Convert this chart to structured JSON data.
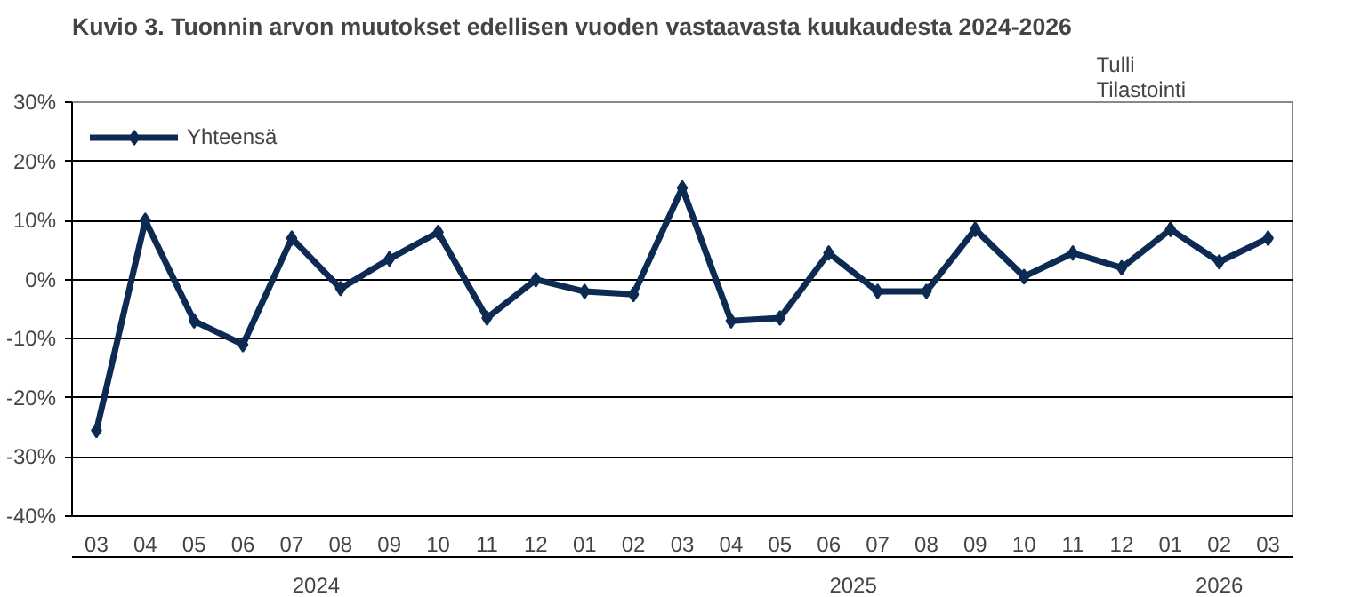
{
  "chart_data": {
    "type": "line",
    "title": "Kuvio 3. Tuonnin arvon muutokset edellisen vuoden vastaavasta kuukaudesta 2024-2026",
    "annotations": [
      "Tulli\nTilastointi",
      "2024",
      "2025",
      "2026"
    ],
    "categories": [
      "03",
      "04",
      "05",
      "06",
      "07",
      "08",
      "09",
      "10",
      "11",
      "12",
      "01",
      "02",
      "03",
      "04",
      "05",
      "06",
      "07",
      "08",
      "09",
      "10",
      "11",
      "12",
      "01",
      "02",
      "03"
    ],
    "series": [
      {
        "name": "Yhteensä",
        "color": "#0d2b52",
        "values": [
          -25.5,
          10,
          -7,
          -11,
          7,
          -1.5,
          3.5,
          8,
          -6.5,
          0,
          -2,
          -2.5,
          15.5,
          -7,
          -6.5,
          4.5,
          -2,
          -2,
          8.5,
          0.5,
          4.5,
          2,
          8.5,
          3,
          7
        ]
      }
    ],
    "ylim": [
      -40,
      30
    ],
    "yticks": [
      {
        "value": -40,
        "label": "-40%"
      },
      {
        "value": -30,
        "label": "-30%"
      },
      {
        "value": -20,
        "label": "-20%"
      },
      {
        "value": -10,
        "label": "-10%"
      },
      {
        "value": 0,
        "label": "0%"
      },
      {
        "value": 10,
        "label": "10%"
      },
      {
        "value": 20,
        "label": "20%"
      },
      {
        "value": 30,
        "label": "30%"
      }
    ],
    "grid": "y",
    "legend": "top left",
    "marker": "diamond",
    "line_style": "solid"
  }
}
